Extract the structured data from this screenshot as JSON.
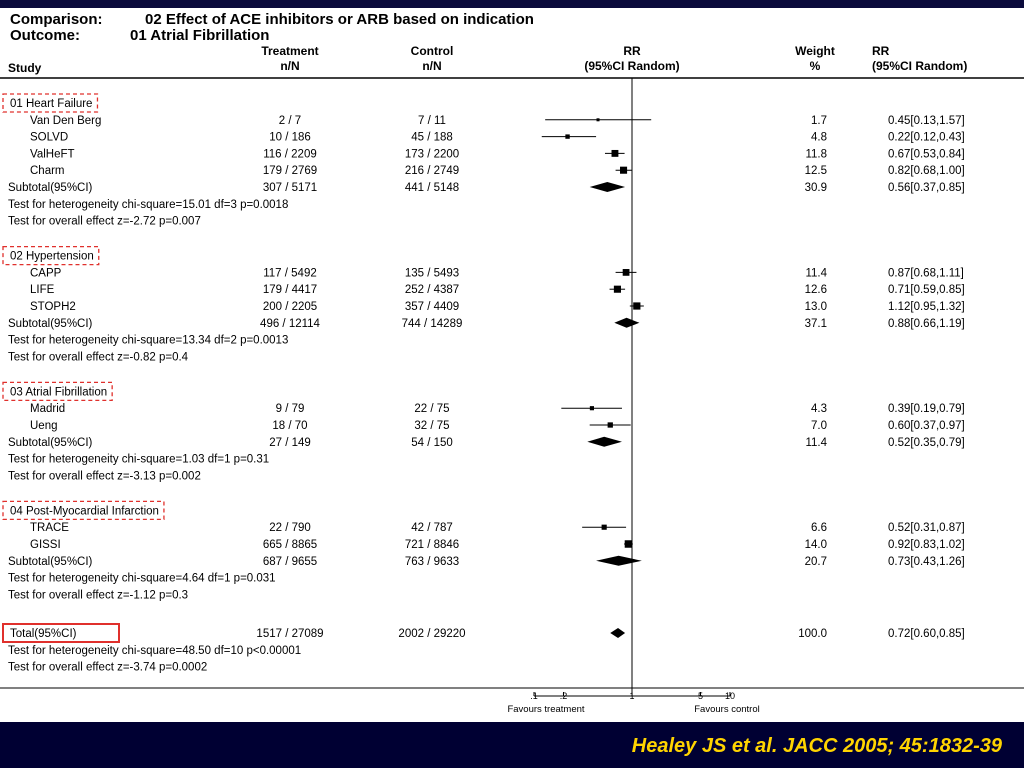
{
  "header": {
    "comparison_label": "Comparison:",
    "comparison_value": "02 Effect of ACE inhibitors or ARB based on indication",
    "outcome_label": "Outcome:",
    "outcome_value": "01 Atrial Fibrillation"
  },
  "columns": {
    "study": "Study",
    "treatment": [
      "Treatment",
      "n/N"
    ],
    "control": [
      "Control",
      "n/N"
    ],
    "rr": [
      "RR",
      "(95%CI Random)"
    ],
    "weight": [
      "Weight",
      "%"
    ],
    "rr_ci": [
      "RR",
      "(95%CI Random)"
    ]
  },
  "citation": "Healey JS et al. JACC 2005; 45:1832-39",
  "colors": {
    "background": "#0a0a3c",
    "citation": "#ffd400",
    "highlight_box": "#e0302c"
  },
  "chart_data": {
    "type": "forest",
    "scale": "log",
    "xlim": [
      0.1,
      10
    ],
    "x_ticks": [
      {
        "value": 0.1,
        "label": ".1"
      },
      {
        "value": 0.2,
        "label": ".2"
      },
      {
        "value": 1,
        "label": "1"
      },
      {
        "value": 5,
        "label": "5"
      },
      {
        "value": 10,
        "label": "10"
      }
    ],
    "left_label": "Favours treatment",
    "right_label": "Favours control",
    "groups": [
      {
        "name": "01 Heart Failure",
        "studies": [
          {
            "name": "Van Den Berg",
            "treatment": "2 / 7",
            "control": "7 / 11",
            "weight": "1.7",
            "rr_text": "0.45[0.13,1.57]",
            "rr": 0.45,
            "lo": 0.13,
            "hi": 1.57
          },
          {
            "name": "SOLVD",
            "treatment": "10 / 186",
            "control": "45 / 188",
            "weight": "4.8",
            "rr_text": "0.22[0.12,0.43]",
            "rr": 0.22,
            "lo": 0.12,
            "hi": 0.43
          },
          {
            "name": "ValHeFT",
            "treatment": "116 / 2209",
            "control": "173 / 2200",
            "weight": "11.8",
            "rr_text": "0.67[0.53,0.84]",
            "rr": 0.67,
            "lo": 0.53,
            "hi": 0.84
          },
          {
            "name": "Charm",
            "treatment": "179 / 2769",
            "control": "216 / 2749",
            "weight": "12.5",
            "rr_text": "0.82[0.68,1.00]",
            "rr": 0.82,
            "lo": 0.68,
            "hi": 1.0
          }
        ],
        "subtotal": {
          "name": "Subtotal(95%CI)",
          "treatment": "307 / 5171",
          "control": "441 / 5148",
          "weight": "30.9",
          "rr_text": "0.56[0.37,0.85]",
          "rr": 0.56,
          "lo": 0.37,
          "hi": 0.85
        },
        "heterogeneity": "Test for heterogeneity chi-square=15.01  df=3  p=0.0018",
        "overall": "Test for overall effect  z=-2.72  p=0.007"
      },
      {
        "name": "02 Hypertension",
        "studies": [
          {
            "name": "CAPP",
            "treatment": "117 / 5492",
            "control": "135 / 5493",
            "weight": "11.4",
            "rr_text": "0.87[0.68,1.11]",
            "rr": 0.87,
            "lo": 0.68,
            "hi": 1.11
          },
          {
            "name": "LIFE",
            "treatment": "179 / 4417",
            "control": "252 / 4387",
            "weight": "12.6",
            "rr_text": "0.71[0.59,0.85]",
            "rr": 0.71,
            "lo": 0.59,
            "hi": 0.85
          },
          {
            "name": "STOPH2",
            "treatment": "200 / 2205",
            "control": "357 / 4409",
            "weight": "13.0",
            "rr_text": "1.12[0.95,1.32]",
            "rr": 1.12,
            "lo": 0.95,
            "hi": 1.32
          }
        ],
        "subtotal": {
          "name": "Subtotal(95%CI)",
          "treatment": "496 / 12114",
          "control": "744 / 14289",
          "weight": "37.1",
          "rr_text": "0.88[0.66,1.19]",
          "rr": 0.88,
          "lo": 0.66,
          "hi": 1.19
        },
        "heterogeneity": "Test for heterogeneity chi-square=13.34  df=2  p=0.0013",
        "overall": "Test for overall effect  z=-0.82  p=0.4"
      },
      {
        "name": "03 Atrial Fibrillation",
        "studies": [
          {
            "name": "Madrid",
            "treatment": "9 / 79",
            "control": "22 / 75",
            "weight": "4.3",
            "rr_text": "0.39[0.19,0.79]",
            "rr": 0.39,
            "lo": 0.19,
            "hi": 0.79
          },
          {
            "name": "Ueng",
            "treatment": "18 / 70",
            "control": "32 / 75",
            "weight": "7.0",
            "rr_text": "0.60[0.37,0.97]",
            "rr": 0.6,
            "lo": 0.37,
            "hi": 0.97
          }
        ],
        "subtotal": {
          "name": "Subtotal(95%CI)",
          "treatment": "27 / 149",
          "control": "54 / 150",
          "weight": "11.4",
          "rr_text": "0.52[0.35,0.79]",
          "rr": 0.52,
          "lo": 0.35,
          "hi": 0.79
        },
        "heterogeneity": "Test for heterogeneity chi-square=1.03  df=1  p=0.31",
        "overall": "Test for overall effect  z=-3.13  p=0.002"
      },
      {
        "name": "04 Post-Myocardial Infarction",
        "studies": [
          {
            "name": "TRACE",
            "treatment": "22 / 790",
            "control": "42 / 787",
            "weight": "6.6",
            "rr_text": "0.52[0.31,0.87]",
            "rr": 0.52,
            "lo": 0.31,
            "hi": 0.87
          },
          {
            "name": "GISSI",
            "treatment": "665 / 8865",
            "control": "721 / 8846",
            "weight": "14.0",
            "rr_text": "0.92[0.83,1.02]",
            "rr": 0.92,
            "lo": 0.83,
            "hi": 1.02
          }
        ],
        "subtotal": {
          "name": "Subtotal(95%CI)",
          "treatment": "687 / 9655",
          "control": "763 / 9633",
          "weight": "20.7",
          "rr_text": "0.73[0.43,1.26]",
          "rr": 0.73,
          "lo": 0.43,
          "hi": 1.26
        },
        "heterogeneity": "Test for heterogeneity chi-square=4.64  df=1  p=0.031",
        "overall": "Test for overall effect  z=-1.12  p=0.3"
      }
    ],
    "total": {
      "name": "Total(95%CI)",
      "treatment": "1517 / 27089",
      "control": "2002 / 29220",
      "weight": "100.0",
      "rr_text": "0.72[0.60,0.85]",
      "rr": 0.72,
      "lo": 0.6,
      "hi": 0.85,
      "heterogeneity": "Test for heterogeneity chi-square=48.50  df=10  p<0.00001",
      "overall": "Test for overall effect  z=-3.74  p=0.0002"
    }
  }
}
